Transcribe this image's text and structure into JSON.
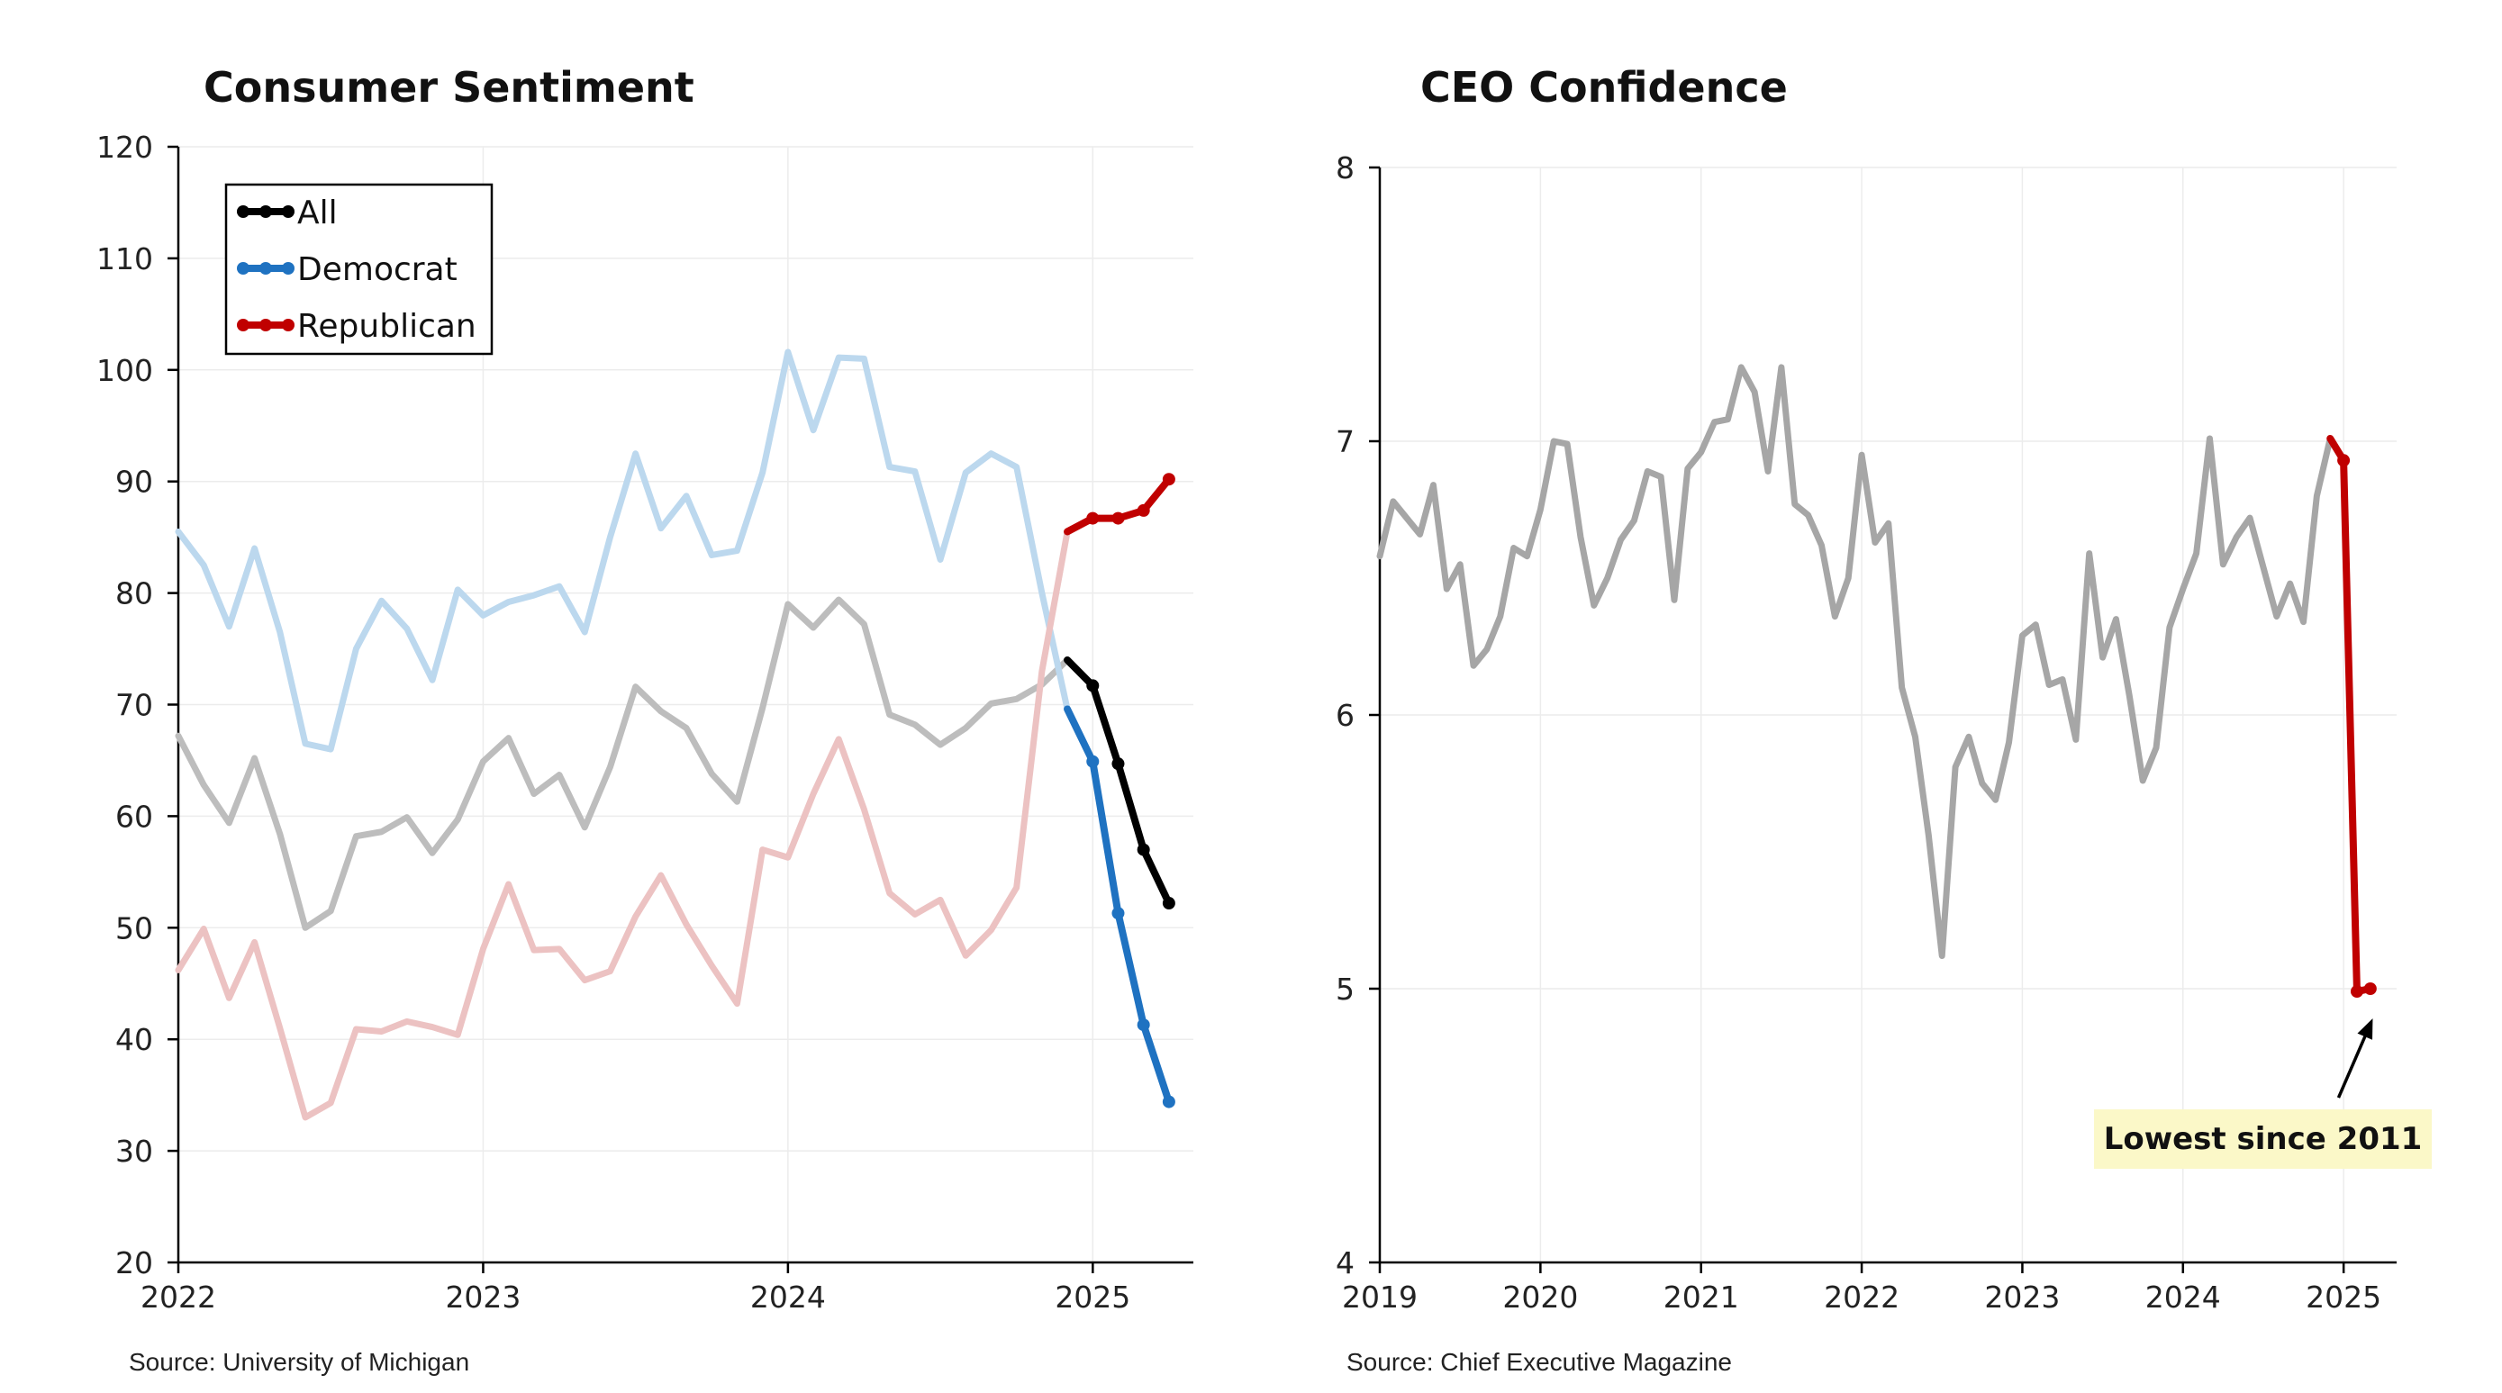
{
  "left_panel": {
    "title": "Consumer Sentiment",
    "source": "Source: University of Michigan"
  },
  "right_panel": {
    "title": "CEO Confidence",
    "source": "Source: Chief Executive Magazine",
    "annotation": "Lowest since 2011"
  },
  "colors": {
    "all": "#000000",
    "all_faded": "#bdbdbd",
    "democrat": "#1f72c1",
    "democrat_faded": "#bcd8ee",
    "republican": "#c00000",
    "republican_faded": "#ecc2c2",
    "ceo": "#a6a6a6",
    "ceo_recent": "#c00000",
    "annotation_bg": "#fbf8c8"
  },
  "chart_data": [
    {
      "type": "line",
      "title": "Consumer Sentiment",
      "xlabel": "",
      "ylabel": "",
      "xlim": [
        2022.0,
        2025.33
      ],
      "ylim": [
        20,
        120
      ],
      "yticks": [
        20,
        30,
        40,
        50,
        60,
        70,
        80,
        90,
        100,
        110,
        120
      ],
      "xticks": [
        {
          "value": 2022,
          "label": "2022"
        },
        {
          "value": 2023,
          "label": "2023"
        },
        {
          "value": 2024,
          "label": "2024"
        },
        {
          "value": 2025,
          "label": "2025"
        }
      ],
      "grid": "horizontal-and-vertical",
      "legend_position": "top-left",
      "legend": [
        "All",
        "Democrat",
        "Republican"
      ],
      "x_start": 2022.0,
      "x_step": 0.08333,
      "highlight_from_index": 35,
      "series": [
        {
          "name": "All",
          "values": [
            67.2,
            62.8,
            59.4,
            65.2,
            58.4,
            50.0,
            51.5,
            58.2,
            58.6,
            59.9,
            56.7,
            59.7,
            64.9,
            67.0,
            62.0,
            63.7,
            59.0,
            64.4,
            71.6,
            69.4,
            67.9,
            63.8,
            61.3,
            69.7,
            79.0,
            76.9,
            79.4,
            77.2,
            69.1,
            68.2,
            66.4,
            67.9,
            70.1,
            70.5,
            71.8,
            74.0,
            71.7,
            64.7,
            57.0,
            52.2
          ]
        },
        {
          "name": "Democrat",
          "values": [
            85.5,
            82.5,
            77.0,
            84.0,
            76.5,
            66.5,
            66.0,
            75.0,
            79.3,
            76.8,
            72.2,
            80.3,
            78.0,
            79.2,
            79.8,
            80.6,
            76.5,
            85.0,
            92.5,
            85.8,
            88.7,
            83.4,
            83.8,
            90.8,
            101.6,
            94.6,
            101.1,
            101.0,
            91.3,
            90.9,
            83.0,
            90.8,
            92.5,
            91.3,
            80.0,
            69.6,
            64.9,
            51.3,
            41.3,
            34.4
          ]
        },
        {
          "name": "Republican",
          "values": [
            46.2,
            49.9,
            43.7,
            48.7,
            41.0,
            33.0,
            34.3,
            40.9,
            40.7,
            41.6,
            41.1,
            40.4,
            48.1,
            53.9,
            48.0,
            48.1,
            45.3,
            46.1,
            51.0,
            54.7,
            50.3,
            46.6,
            43.2,
            57.0,
            56.3,
            62.0,
            66.9,
            60.6,
            53.1,
            51.2,
            52.5,
            47.5,
            49.8,
            53.6,
            73.0,
            85.5,
            86.7,
            86.7,
            87.4,
            90.2
          ]
        }
      ]
    },
    {
      "type": "line",
      "title": "CEO Confidence",
      "xlabel": "",
      "ylabel": "",
      "xlim": [
        2019.0,
        2025.33
      ],
      "ylim": [
        4,
        8
      ],
      "yticks": [
        4,
        5,
        6,
        7,
        8
      ],
      "xticks": [
        {
          "value": 2019,
          "label": "2019"
        },
        {
          "value": 2020,
          "label": "2020"
        },
        {
          "value": 2021,
          "label": "2021"
        },
        {
          "value": 2022,
          "label": "2022"
        },
        {
          "value": 2023,
          "label": "2023"
        },
        {
          "value": 2024,
          "label": "2024"
        },
        {
          "value": 2025,
          "label": "2025"
        }
      ],
      "grid": "horizontal-and-vertical",
      "x_start": 2019.0,
      "x_step": 0.08333,
      "highlight_from_index": 71,
      "annotation": {
        "text": "Lowest since 2011",
        "points_to_x": 2025.17,
        "points_to_y": 4.99
      },
      "series": [
        {
          "name": "CEO Confidence",
          "values": [
            6.58,
            6.78,
            6.72,
            6.66,
            6.84,
            6.46,
            6.55,
            6.18,
            6.24,
            6.36,
            6.61,
            6.58,
            6.75,
            7.0,
            6.99,
            6.65,
            6.4,
            6.5,
            6.64,
            6.71,
            6.89,
            6.87,
            6.42,
            6.9,
            6.96,
            7.07,
            7.08,
            7.27,
            7.18,
            6.89,
            7.27,
            6.77,
            6.73,
            6.62,
            6.36,
            6.5,
            6.95,
            6.63,
            6.7,
            6.1,
            5.92,
            5.56,
            5.12,
            5.81,
            5.92,
            5.75,
            5.69,
            5.9,
            6.29,
            6.33,
            6.11,
            6.13,
            5.91,
            6.59,
            6.21,
            6.35,
            6.07,
            5.76,
            5.88,
            6.32,
            6.46,
            6.59,
            7.01,
            6.55,
            6.65,
            6.72,
            6.54,
            6.36,
            6.48,
            6.34,
            6.8,
            7.01,
            6.93,
            4.99,
            5.0
          ]
        }
      ]
    }
  ]
}
